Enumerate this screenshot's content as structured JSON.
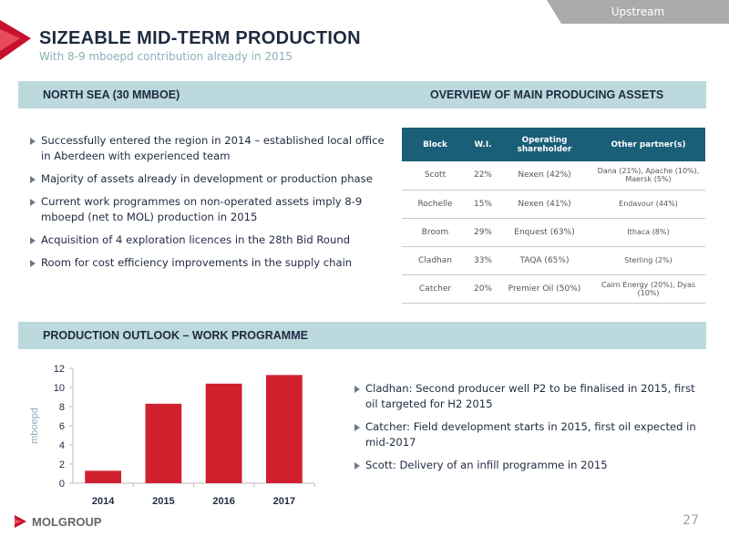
{
  "section_tag": "Upstream",
  "title": "SIZEABLE MID-TERM PRODUCTION",
  "subtitle": "With 8-9 mboepd contribution already in 2015",
  "north_sea_header": "NORTH SEA (30 MMBOE)",
  "overview_header": "OVERVIEW OF MAIN PRODUCING ASSETS",
  "left_bullets": [
    "Successfully entered the region in 2014 – established local office in Aberdeen with experienced team",
    "Majority of assets already in development or production phase",
    "Current work programmes on non-operated assets imply  8-9 mboepd (net to MOL) production in 2015",
    "Acquisition of 4 exploration licences in the 28th Bid Round",
    "Room for cost efficiency improvements in the supply chain"
  ],
  "table": {
    "headers": [
      "Block",
      "W.I.",
      "Operating shareholder",
      "Other partner(s)"
    ],
    "rows": [
      [
        "Scott",
        "22%",
        "Nexen (42%)",
        "Dana (21%), Apache (10%), Maersk (5%)"
      ],
      [
        "Rochelle",
        "15%",
        "Nexen (41%)",
        "Endavour (44%)"
      ],
      [
        "Broom",
        "29%",
        "Enquest (63%)",
        "Ithaca (8%)"
      ],
      [
        "Cladhan",
        "33%",
        "TAQA (65%)",
        "Sterling (2%)"
      ],
      [
        "Catcher",
        "20%",
        "Premier Oil (50%)",
        "Cairn Energy (20%), Dyas (10%)"
      ]
    ]
  },
  "outlook_header": "PRODUCTION OUTLOOK – WORK PROGRAMME",
  "right_bullets": [
    "Cladhan: Second producer well P2 to be finalised in 2015, first oil targeted for H2 2015",
    "Catcher: Field development starts in 2015, first oil expected in mid-2017",
    "Scott: Delivery of an infill programme in 2015"
  ],
  "chart_data": {
    "type": "bar",
    "categories": [
      "2014",
      "2015",
      "2016",
      "2017"
    ],
    "values": [
      1.3,
      8.3,
      10.4,
      11.3
    ],
    "ylabel": "mboepd",
    "ylim": [
      0,
      12
    ],
    "yticks": [
      0,
      2,
      4,
      6,
      8,
      10,
      12
    ],
    "grid": false,
    "color": "#d0202e"
  },
  "brand": {
    "name": "MOLGROUP",
    "accent": "#d0202e"
  },
  "page_number": "27"
}
